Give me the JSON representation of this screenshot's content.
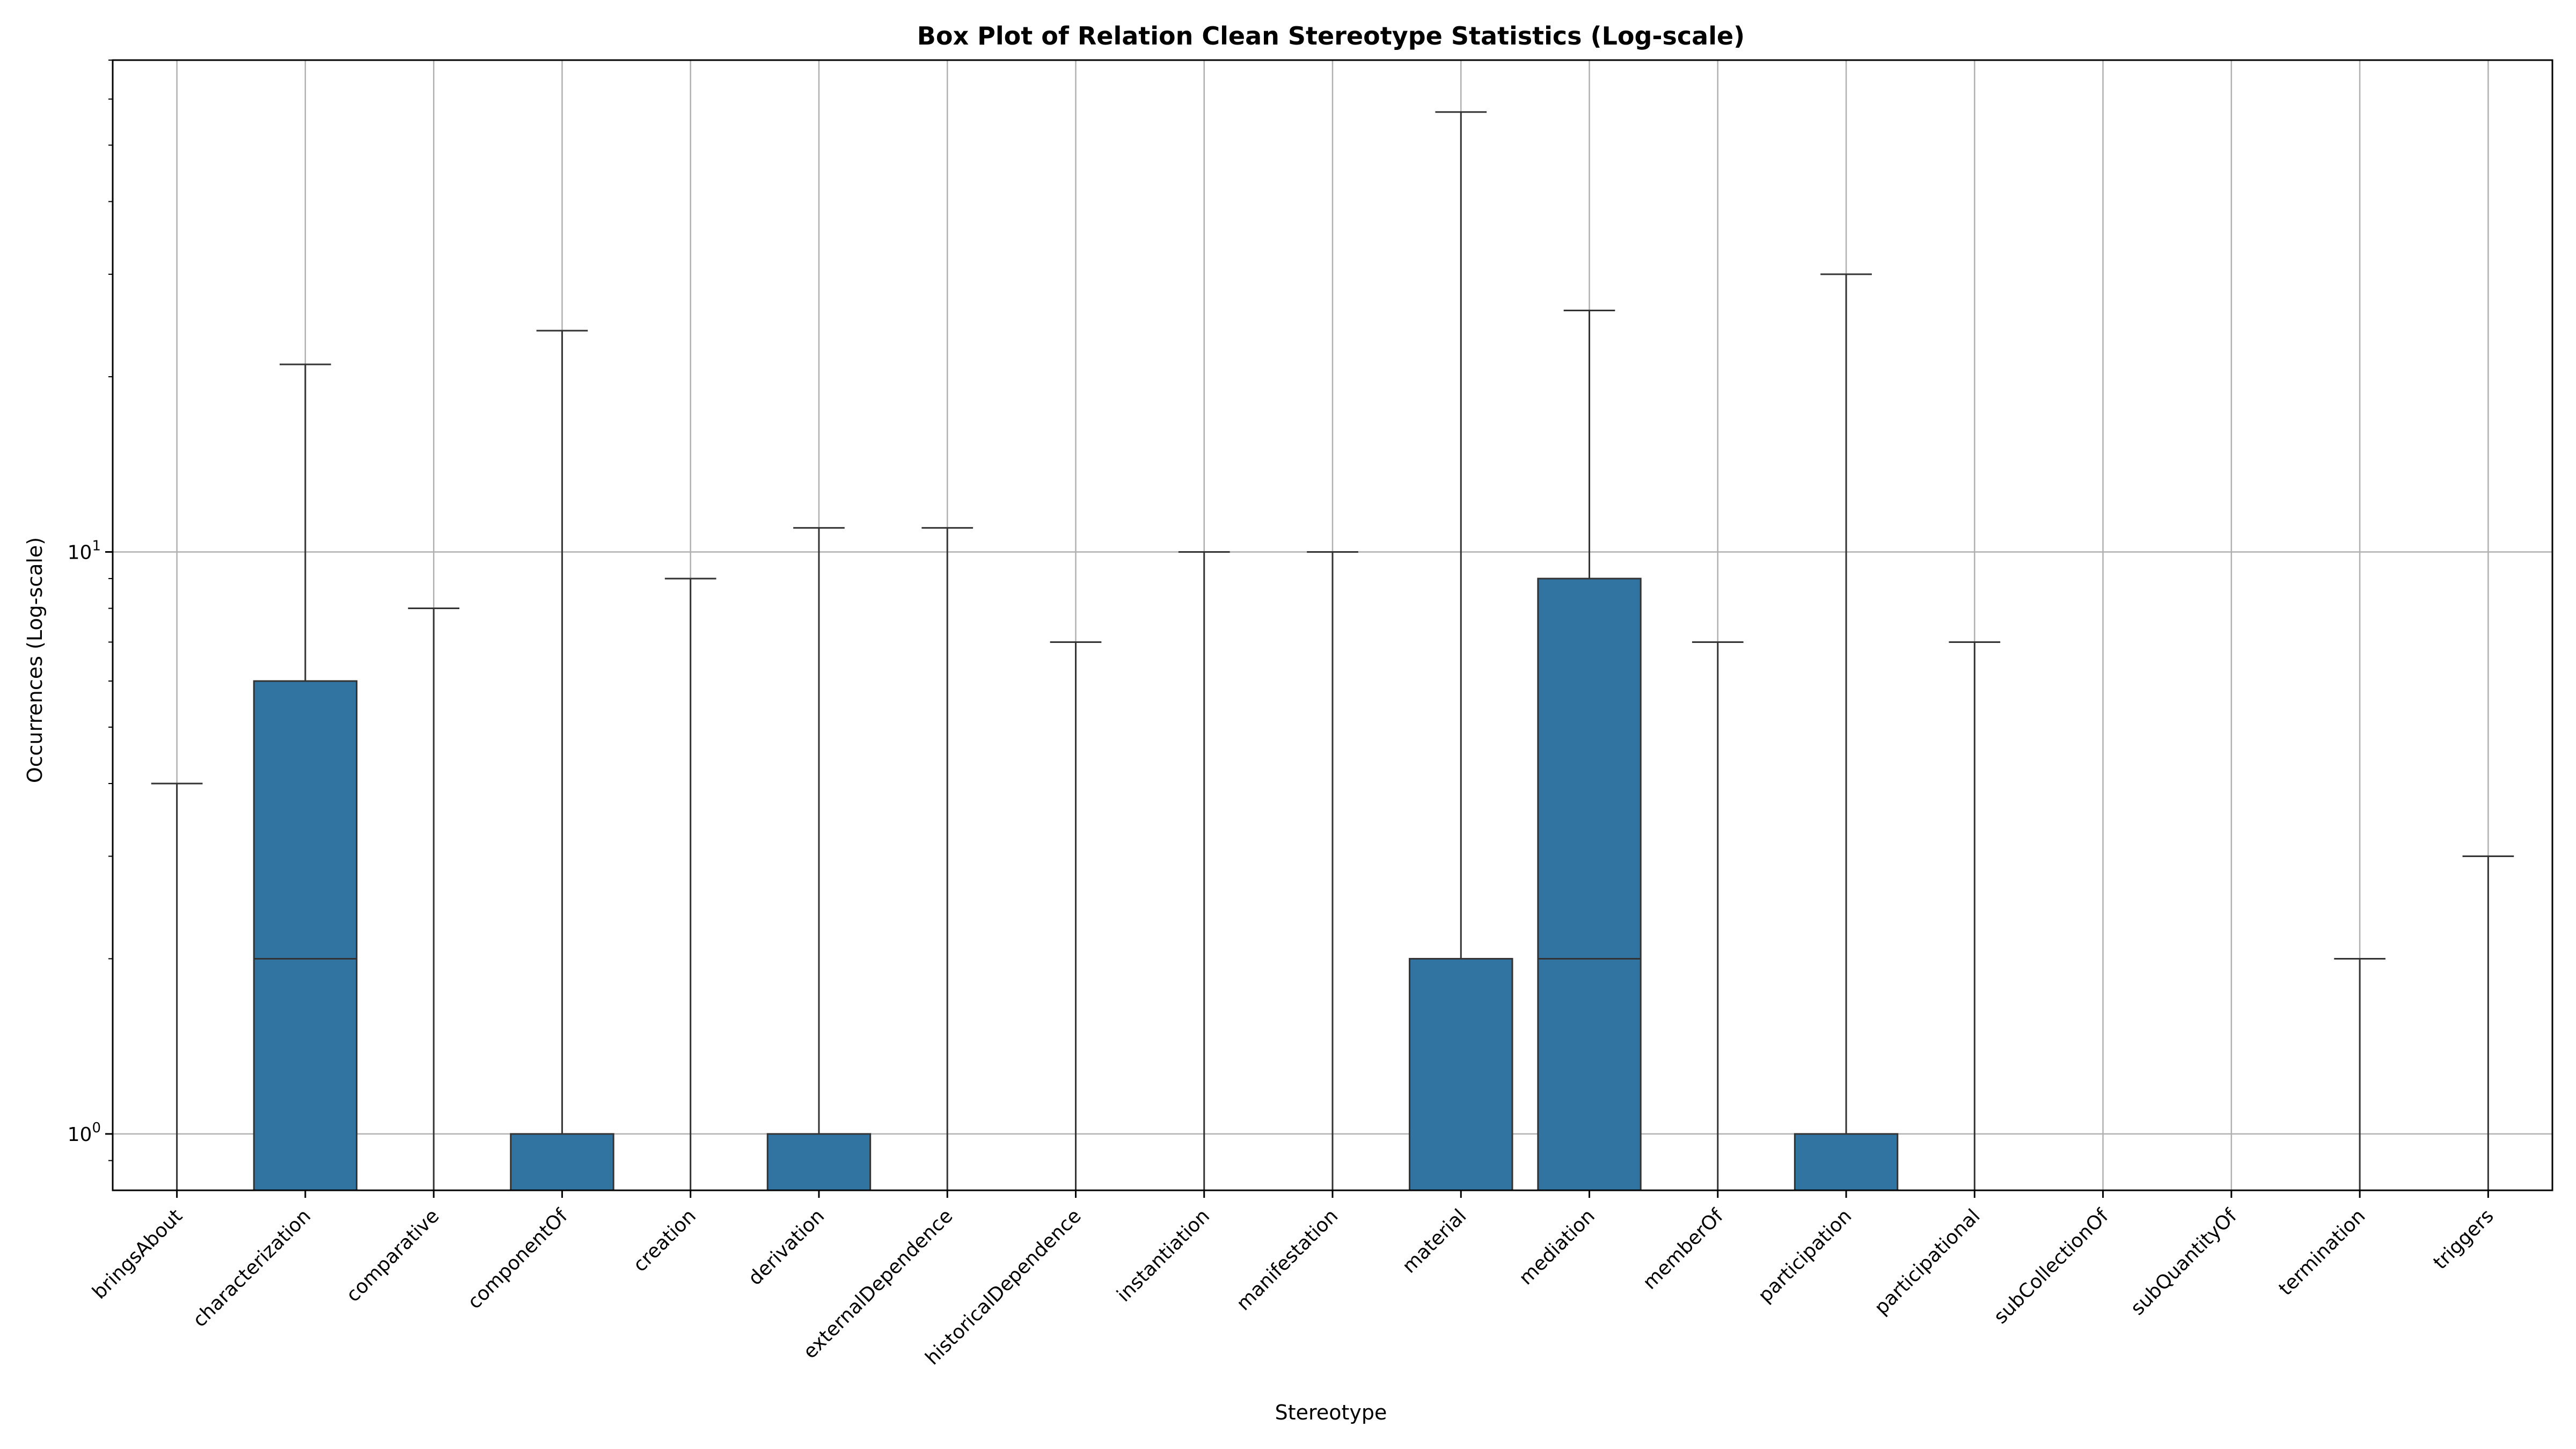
{
  "chart_data": {
    "type": "box",
    "title": "Box Plot of Relation Clean Stereotype Statistics (Log-scale)",
    "xlabel": "Stereotype",
    "ylabel": "Occurrences (Log-scale)",
    "y_scale": "log",
    "ylim": [
      0.8,
      70
    ],
    "y_ticks": [
      {
        "value": 1,
        "base": "10",
        "exp": "0"
      },
      {
        "value": 10,
        "base": "10",
        "exp": "1"
      }
    ],
    "grid": true,
    "box_color": "#3274a1",
    "categories": [
      "bringsAbout",
      "characterization",
      "comparative",
      "componentOf",
      "creation",
      "derivation",
      "externalDependence",
      "historicalDependence",
      "instantiation",
      "manifestation",
      "material",
      "mediation",
      "memberOf",
      "participation",
      "participational",
      "subCollectionOf",
      "subQuantityOf",
      "termination",
      "triggers"
    ],
    "boxes": [
      {
        "q1": 0,
        "median": 0,
        "q3": 0,
        "whisker_low": 0,
        "whisker_high": 4
      },
      {
        "q1": 0,
        "median": 2,
        "q3": 6,
        "whisker_low": 0,
        "whisker_high": 21
      },
      {
        "q1": 0,
        "median": 0,
        "q3": 0,
        "whisker_low": 0,
        "whisker_high": 8
      },
      {
        "q1": 0,
        "median": 0,
        "q3": 1,
        "whisker_low": 0,
        "whisker_high": 24
      },
      {
        "q1": 0,
        "median": 0,
        "q3": 0,
        "whisker_low": 0,
        "whisker_high": 9
      },
      {
        "q1": 0,
        "median": 0,
        "q3": 1,
        "whisker_low": 0,
        "whisker_high": 11
      },
      {
        "q1": 0,
        "median": 0,
        "q3": 0,
        "whisker_low": 0,
        "whisker_high": 11
      },
      {
        "q1": 0,
        "median": 0,
        "q3": 0,
        "whisker_low": 0,
        "whisker_high": 7
      },
      {
        "q1": 0,
        "median": 0,
        "q3": 0,
        "whisker_low": 0,
        "whisker_high": 10
      },
      {
        "q1": 0,
        "median": 0,
        "q3": 0,
        "whisker_low": 0,
        "whisker_high": 10
      },
      {
        "q1": 0,
        "median": 0,
        "q3": 2,
        "whisker_low": 0,
        "whisker_high": 57
      },
      {
        "q1": 0,
        "median": 2,
        "q3": 9,
        "whisker_low": 0,
        "whisker_high": 26
      },
      {
        "q1": 0,
        "median": 0,
        "q3": 0,
        "whisker_low": 0,
        "whisker_high": 7
      },
      {
        "q1": 0,
        "median": 0,
        "q3": 1,
        "whisker_low": 0,
        "whisker_high": 30
      },
      {
        "q1": 0,
        "median": 0,
        "q3": 0,
        "whisker_low": 0,
        "whisker_high": 7
      },
      {
        "q1": 0,
        "median": 0,
        "q3": 0,
        "whisker_low": 0,
        "whisker_high": 0
      },
      {
        "q1": 0,
        "median": 0,
        "q3": 0,
        "whisker_low": 0,
        "whisker_high": 0
      },
      {
        "q1": 0,
        "median": 0,
        "q3": 0,
        "whisker_low": 0,
        "whisker_high": 2
      },
      {
        "q1": 0,
        "median": 0,
        "q3": 0,
        "whisker_low": 0,
        "whisker_high": 3
      }
    ]
  }
}
